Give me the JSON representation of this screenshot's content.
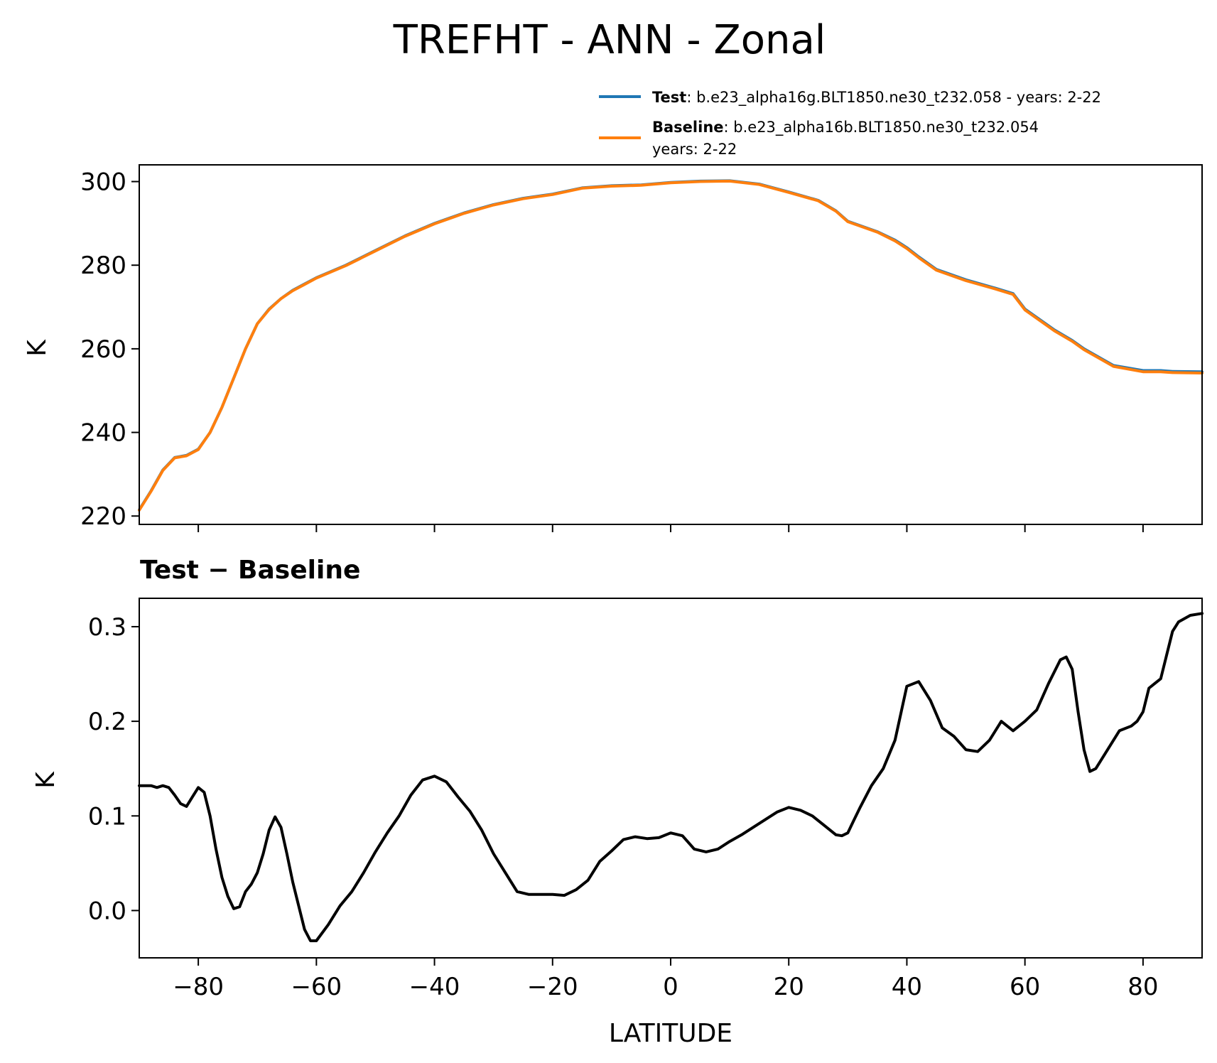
{
  "chart_data": [
    {
      "type": "line",
      "title": "TREFHT - ANN - Zonal",
      "ylabel": "K",
      "xlim": [
        -90,
        90
      ],
      "ylim": [
        218,
        304
      ],
      "yticks": [
        220,
        240,
        260,
        280,
        300
      ],
      "xticks": [
        -80,
        -60,
        -40,
        -20,
        0,
        20,
        40,
        60,
        80
      ],
      "grid": false,
      "legend_position": "top-right (above axes)",
      "series": [
        {
          "name": "Test",
          "legend_label": ": b.e23_alpha16g.BLT1850.ne30_t232.058 - years: 2-22",
          "color": "#1f77b4",
          "x": [
            -90,
            -88,
            -86,
            -84,
            -82,
            -80,
            -78,
            -76,
            -74,
            -72,
            -70,
            -68,
            -66,
            -64,
            -62,
            -60,
            -55,
            -50,
            -45,
            -40,
            -35,
            -30,
            -25,
            -20,
            -15,
            -10,
            -5,
            0,
            5,
            10,
            15,
            20,
            25,
            28,
            30,
            35,
            38,
            40,
            42,
            45,
            50,
            55,
            58,
            60,
            65,
            68,
            70,
            75,
            80,
            83,
            85,
            90
          ],
          "y": [
            221.5,
            226,
            231,
            234,
            234.5,
            236,
            240,
            246,
            253,
            260,
            266,
            269.5,
            272,
            274,
            275.5,
            277,
            280,
            283.5,
            287,
            290,
            292.5,
            294.5,
            296,
            297,
            298.5,
            299,
            299.2,
            299.8,
            300.1,
            300.2,
            299.4,
            297.5,
            295.5,
            293,
            290.5,
            288,
            286,
            284.2,
            282,
            279,
            276.5,
            274.5,
            273.2,
            269.5,
            264.5,
            262,
            260,
            256,
            254.8,
            254.8,
            254.6,
            254.5
          ]
        },
        {
          "name": "Baseline",
          "legend_label": ": b.e23_alpha16b.BLT1850.ne30_t232.054",
          "legend_label_line2": "years: 2-22",
          "color": "#ff7f0e",
          "x": [
            -90,
            -88,
            -86,
            -84,
            -82,
            -80,
            -78,
            -76,
            -74,
            -72,
            -70,
            -68,
            -66,
            -64,
            -62,
            -60,
            -55,
            -50,
            -45,
            -40,
            -35,
            -30,
            -25,
            -20,
            -15,
            -10,
            -5,
            0,
            5,
            10,
            15,
            20,
            25,
            28,
            30,
            35,
            38,
            40,
            42,
            45,
            50,
            55,
            58,
            60,
            65,
            68,
            70,
            75,
            80,
            83,
            85,
            90
          ],
          "y": [
            221.4,
            225.9,
            230.9,
            233.9,
            234.4,
            235.9,
            240,
            246,
            253,
            260,
            266,
            269.4,
            272,
            273.9,
            275.4,
            276.9,
            279.9,
            283.4,
            286.9,
            289.9,
            292.4,
            294.4,
            295.9,
            296.9,
            298.4,
            298.9,
            299.1,
            299.7,
            300.0,
            300.1,
            299.3,
            297.4,
            295.4,
            292.9,
            290.4,
            287.9,
            285.8,
            284.0,
            281.8,
            278.8,
            276.3,
            274.3,
            273.0,
            269.3,
            264.3,
            261.8,
            259.8,
            255.8,
            254.5,
            254.5,
            254.3,
            254.2
          ]
        }
      ]
    },
    {
      "type": "line",
      "title": "Test − Baseline",
      "xlabel": "LATITUDE",
      "ylabel": "K",
      "xlim": [
        -90,
        90
      ],
      "ylim": [
        -0.05,
        0.33
      ],
      "yticks": [
        0.0,
        0.1,
        0.2,
        0.3
      ],
      "ytick_labels": [
        "0.0",
        "0.1",
        "0.2",
        "0.3"
      ],
      "xticks": [
        -80,
        -60,
        -40,
        -20,
        0,
        20,
        40,
        60,
        80
      ],
      "xtick_labels": [
        "−80",
        "−60",
        "−40",
        "−20",
        "0",
        "20",
        "40",
        "60",
        "80"
      ],
      "grid": false,
      "series": [
        {
          "color": "#000000",
          "x": [
            -90,
            -88,
            -87,
            -86,
            -85,
            -84,
            -83,
            -82,
            -81,
            -80,
            -79,
            -78,
            -77,
            -76,
            -75,
            -74,
            -73,
            -72,
            -71,
            -70,
            -69,
            -68,
            -67,
            -66,
            -65,
            -64,
            -63,
            -62,
            -61,
            -60,
            -58,
            -56,
            -54,
            -52,
            -50,
            -48,
            -46,
            -44,
            -42,
            -40,
            -38,
            -36,
            -34,
            -32,
            -30,
            -28,
            -26,
            -24,
            -22,
            -20,
            -18,
            -16,
            -14,
            -12,
            -10,
            -8,
            -6,
            -4,
            -2,
            0,
            2,
            4,
            6,
            8,
            10,
            12,
            14,
            16,
            18,
            20,
            22,
            24,
            26,
            28,
            29,
            30,
            31,
            32,
            34,
            36,
            38,
            40,
            42,
            44,
            46,
            48,
            50,
            52,
            54,
            56,
            58,
            60,
            62,
            64,
            66,
            67,
            68,
            69,
            70,
            71,
            72,
            74,
            76,
            78,
            79,
            80,
            81,
            82,
            83,
            84,
            85,
            86,
            88,
            90
          ],
          "y": [
            0.132,
            0.132,
            0.13,
            0.132,
            0.13,
            0.122,
            0.113,
            0.11,
            0.12,
            0.13,
            0.125,
            0.1,
            0.065,
            0.035,
            0.015,
            0.002,
            0.004,
            0.02,
            0.028,
            0.04,
            0.06,
            0.085,
            0.099,
            0.088,
            0.06,
            0.03,
            0.005,
            -0.02,
            -0.032,
            -0.032,
            -0.015,
            0.005,
            0.02,
            0.04,
            0.062,
            0.082,
            0.1,
            0.122,
            0.138,
            0.142,
            0.136,
            0.12,
            0.105,
            0.085,
            0.06,
            0.04,
            0.02,
            0.017,
            0.017,
            0.017,
            0.016,
            0.022,
            0.032,
            0.052,
            0.063,
            0.075,
            0.078,
            0.076,
            0.077,
            0.082,
            0.079,
            0.065,
            0.062,
            0.065,
            0.073,
            0.08,
            0.088,
            0.096,
            0.104,
            0.109,
            0.106,
            0.1,
            0.09,
            0.08,
            0.079,
            0.082,
            0.095,
            0.108,
            0.132,
            0.15,
            0.18,
            0.237,
            0.242,
            0.222,
            0.193,
            0.184,
            0.17,
            0.168,
            0.18,
            0.2,
            0.19,
            0.2,
            0.212,
            0.24,
            0.265,
            0.268,
            0.255,
            0.21,
            0.17,
            0.147,
            0.15,
            0.17,
            0.19,
            0.195,
            0.2,
            0.21,
            0.235,
            0.24,
            0.245,
            0.27,
            0.295,
            0.305,
            0.312,
            0.314
          ]
        }
      ]
    }
  ]
}
